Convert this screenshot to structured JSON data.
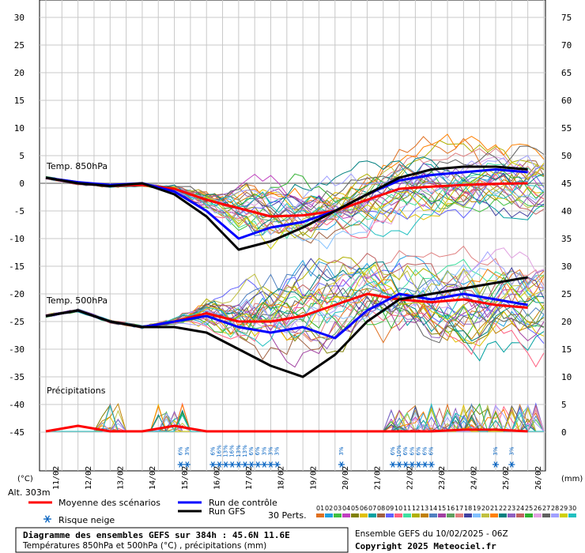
{
  "header": {},
  "chart_data": {
    "type": "line",
    "y_left_ticks": [
      "30",
      "25",
      "20",
      "15",
      "10",
      "5",
      "0",
      "-5",
      "-10",
      "-15",
      "-20",
      "-25",
      "-30",
      "-35",
      "-40",
      "-45"
    ],
    "y_right_ticks": [
      "75",
      "70",
      "65",
      "60",
      "55",
      "50",
      "45",
      "40",
      "35",
      "30",
      "25",
      "20",
      "15",
      "10",
      "5",
      "0"
    ],
    "ylim_left": [
      -45,
      30
    ],
    "ylim_right": [
      0,
      75
    ],
    "y_left_unit": "(°C)",
    "y_right_unit": "(mm)",
    "x_ticks": [
      "11/02",
      "12/02",
      "13/02",
      "14/02",
      "15/02",
      "16/02",
      "17/02",
      "18/02",
      "19/02",
      "20/02",
      "21/02",
      "22/02",
      "23/02",
      "24/02",
      "25/02",
      "26/02"
    ],
    "panel_labels": {
      "t850": "Temp. 850hPa",
      "t500": "Temp. 500hPa",
      "precip": "Précipitations"
    },
    "altitude": "Alt. 303m",
    "legend": {
      "mean": "Moyenne des scénarios",
      "control": "Run de contrôle",
      "gfs": "Run GFS",
      "snow": "Risque neige",
      "perts": "30 Perts.",
      "pert_numbers": [
        "01",
        "02",
        "03",
        "04",
        "05",
        "06",
        "07",
        "08",
        "09",
        "10",
        "11",
        "12",
        "13",
        "14",
        "15",
        "16",
        "17",
        "18",
        "19",
        "20",
        "21",
        "22",
        "23",
        "24",
        "25",
        "26",
        "27",
        "28",
        "29",
        "30"
      ]
    },
    "footer": {
      "title": "Diagramme des ensembles GEFS sur 384h : 45.6N 11.6E",
      "subtitle": "Températures 850hPa et 500hPa (°C) , précipitations (mm)",
      "run": "Ensemble GEFS du 10/02/2025 - 06Z",
      "copyright": "Copyright 2025 Meteociel.fr"
    },
    "colors": {
      "mean": "#ff0000",
      "control": "#0000ff",
      "gfs": "#000000",
      "snow": "#0060c0"
    },
    "series": [
      {
        "name": "Moyenne des scénarios",
        "panel": "t850",
        "x": [
          0,
          1,
          2,
          3,
          4,
          5,
          6,
          7,
          8,
          9,
          10,
          11,
          12,
          13,
          14,
          15
        ],
        "values": [
          1,
          0,
          -0.5,
          -0.3,
          -1,
          -3,
          -4.5,
          -6,
          -5.8,
          -5,
          -3,
          -1,
          -0.6,
          -0.3,
          -0.1,
          0
        ]
      },
      {
        "name": "Run de contrôle",
        "panel": "t850",
        "x": [
          0,
          1,
          2,
          3,
          4,
          5,
          6,
          7,
          8,
          9,
          10,
          11,
          12,
          13,
          14,
          15
        ],
        "values": [
          1,
          0.2,
          -0.3,
          0,
          -1.5,
          -5,
          -10,
          -8,
          -7,
          -5,
          -2,
          0.5,
          1.5,
          2,
          2.5,
          2
        ]
      },
      {
        "name": "Run GFS",
        "panel": "t850",
        "x": [
          0,
          1,
          2,
          3,
          4,
          5,
          6,
          7,
          8,
          9,
          10,
          11,
          12,
          13,
          14,
          15
        ],
        "values": [
          1,
          0,
          -0.5,
          0,
          -2,
          -6,
          -12,
          -10.5,
          -8,
          -5,
          -2,
          1,
          2.5,
          3,
          3,
          2.5
        ]
      },
      {
        "name": "Moyenne des scénarios",
        "panel": "t500",
        "x": [
          0,
          1,
          2,
          3,
          4,
          5,
          6,
          7,
          8,
          9,
          10,
          11,
          12,
          13,
          14,
          15
        ],
        "values": [
          -24,
          -23,
          -25,
          -26,
          -25,
          -23.5,
          -25,
          -25,
          -24,
          -22,
          -20,
          -21,
          -21.5,
          -21,
          -22,
          -22.5
        ]
      },
      {
        "name": "Run de contrôle",
        "panel": "t500",
        "x": [
          0,
          1,
          2,
          3,
          4,
          5,
          6,
          7,
          8,
          9,
          10,
          11,
          12,
          13,
          14,
          15
        ],
        "values": [
          -24,
          -23,
          -25,
          -26,
          -25,
          -24,
          -26,
          -27,
          -26,
          -28,
          -23,
          -20,
          -21,
          -20,
          -21,
          -22
        ]
      },
      {
        "name": "Run GFS",
        "panel": "t500",
        "x": [
          0,
          1,
          2,
          3,
          4,
          5,
          6,
          7,
          8,
          9,
          10,
          11,
          12,
          13,
          14,
          15
        ],
        "values": [
          -24,
          -23,
          -25,
          -26,
          -26,
          -27,
          -30,
          -33,
          -35,
          -31,
          -25,
          -21,
          -20,
          -19,
          -18,
          -17
        ]
      },
      {
        "name": "Moyenne des scénarios",
        "panel": "precip",
        "x": [
          0,
          1,
          2,
          3,
          4,
          5,
          6,
          7,
          8,
          9,
          10,
          11,
          12,
          13,
          14,
          15
        ],
        "values": [
          0,
          1,
          0,
          0,
          1,
          0,
          0,
          0,
          0,
          0,
          0,
          0,
          0,
          0.3,
          0.3,
          0
        ]
      }
    ],
    "snow_risk": [
      {
        "x": 4.2,
        "pct": "6%"
      },
      {
        "x": 4.4,
        "pct": "3%"
      },
      {
        "x": 5.2,
        "pct": "6%"
      },
      {
        "x": 5.4,
        "pct": "16%"
      },
      {
        "x": 5.6,
        "pct": "13%"
      },
      {
        "x": 5.8,
        "pct": "16%"
      },
      {
        "x": 6.0,
        "pct": "13%"
      },
      {
        "x": 6.2,
        "pct": "13%"
      },
      {
        "x": 6.4,
        "pct": "6%"
      },
      {
        "x": 6.6,
        "pct": "6%"
      },
      {
        "x": 6.8,
        "pct": "3%"
      },
      {
        "x": 7.0,
        "pct": "3%"
      },
      {
        "x": 7.2,
        "pct": "3%"
      },
      {
        "x": 9.2,
        "pct": "3%"
      },
      {
        "x": 10.8,
        "pct": "6%"
      },
      {
        "x": 11.0,
        "pct": "10%"
      },
      {
        "x": 11.2,
        "pct": "6%"
      },
      {
        "x": 11.4,
        "pct": "6%"
      },
      {
        "x": 11.6,
        "pct": "6%"
      },
      {
        "x": 11.8,
        "pct": "6%"
      },
      {
        "x": 12.0,
        "pct": "6%"
      },
      {
        "x": 14.0,
        "pct": "3%"
      },
      {
        "x": 14.5,
        "pct": "3%"
      }
    ]
  }
}
